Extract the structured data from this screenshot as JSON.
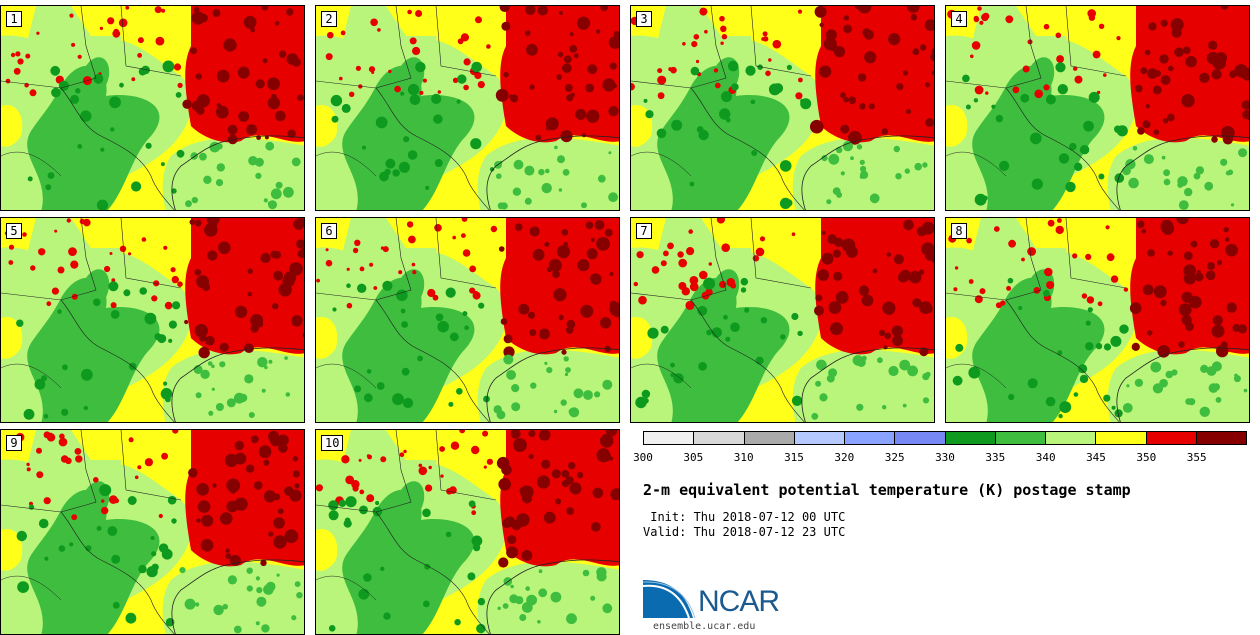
{
  "panels": [
    "1",
    "2",
    "3",
    "4",
    "5",
    "6",
    "7",
    "8",
    "9",
    "10"
  ],
  "colorbar": {
    "colors": [
      "#f0f0f0",
      "#d8d8d8",
      "#aaaaaa",
      "#b6c9ff",
      "#8aa3ff",
      "#7788f5",
      "#0e9a1e",
      "#3ebd3e",
      "#b8f57a",
      "#ffff19",
      "#e60000",
      "#860000"
    ],
    "tick_labels": [
      "300",
      "305",
      "310",
      "315",
      "320",
      "325",
      "330",
      "335",
      "340",
      "345",
      "350",
      "355"
    ]
  },
  "title": "2-m equivalent potential temperature (K) postage stamp",
  "init_text": " Init: Thu 2018-07-12 00 UTC",
  "valid_text": "Valid: Thu 2018-07-12 23 UTC",
  "logo_text": "NCAR",
  "site_text": "ensemble.ucar.edu"
}
